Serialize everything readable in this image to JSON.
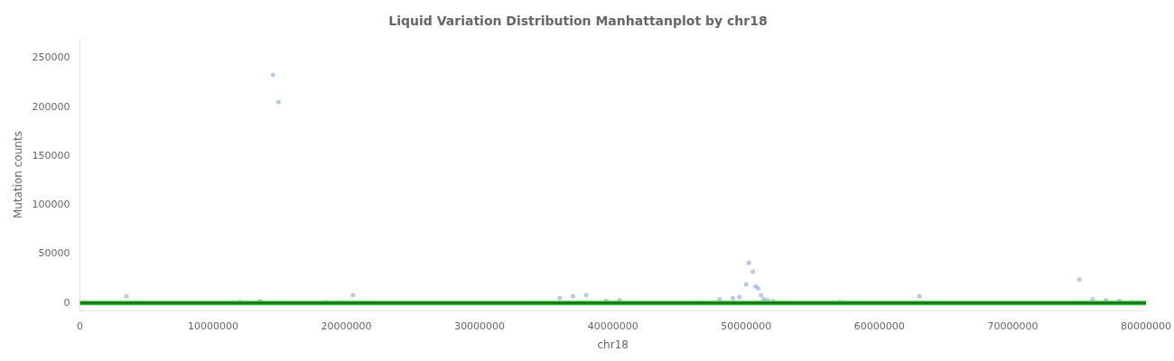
{
  "chart_data": {
    "type": "scatter",
    "title": "Liquid Variation Distribution Manhattanplot by chr18",
    "xlabel": "chr18",
    "ylabel": "Mutation counts",
    "x": [
      3500000,
      12000000,
      13500000,
      14500000,
      14900000,
      18500000,
      19500000,
      20500000,
      36000000,
      37000000,
      38000000,
      39500000,
      40500000,
      48000000,
      49000000,
      49500000,
      50000000,
      50200000,
      50500000,
      50700000,
      50900000,
      51100000,
      51300000,
      51600000,
      52000000,
      57000000,
      63000000,
      75000000,
      76000000,
      77000000,
      78000000,
      79000000
    ],
    "values": [
      7000,
      1000,
      2000,
      233000,
      205000,
      1000,
      500,
      8000,
      5000,
      7000,
      8000,
      2000,
      3000,
      4000,
      5000,
      6000,
      19000,
      41000,
      32000,
      17000,
      15000,
      8000,
      4000,
      3000,
      2000,
      1000,
      7000,
      24000,
      4000,
      3000,
      2000,
      1000
    ],
    "color": "#7b9fd4",
    "xlim": [
      0,
      80000000
    ],
    "ylim": [
      -8000,
      270000
    ],
    "xticks": [
      0,
      10000000,
      20000000,
      30000000,
      40000000,
      50000000,
      60000000,
      70000000,
      80000000
    ],
    "yticks": [
      0,
      50000,
      100000,
      150000,
      200000,
      250000
    ],
    "grid": false,
    "hlines": [
      {
        "value": 0,
        "color": "#2db52d"
      },
      {
        "value": 0,
        "color": "#000000"
      }
    ]
  }
}
